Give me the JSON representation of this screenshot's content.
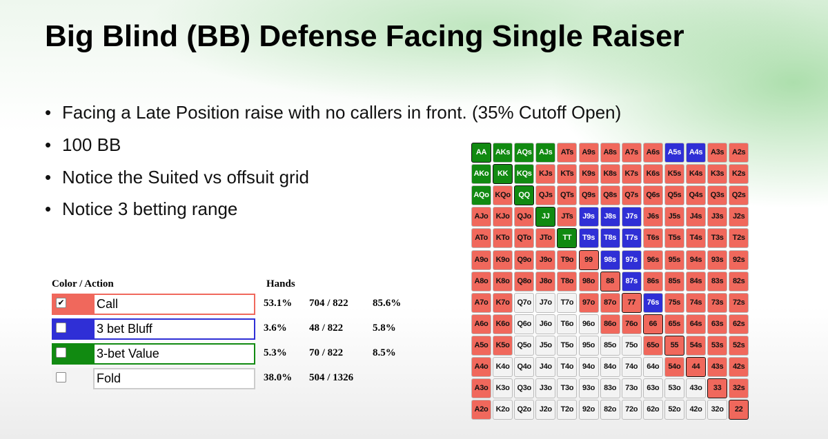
{
  "title": "Big Blind (BB) Defense Facing Single Raiser",
  "bullets": [
    "Facing a Late Position raise with no callers in front. (35% Cutoff Open)",
    "100 BB",
    "Notice the Suited vs offsuit grid",
    "Notice 3 betting range"
  ],
  "legend": {
    "header_action": "Color / Action",
    "header_hands": "Hands",
    "rows": [
      {
        "label": "Call",
        "color": "#f0685c",
        "checked": true,
        "percent": "53.1%",
        "hands": "704 / 822",
        "share": "85.6%"
      },
      {
        "label": "3 bet Bluff",
        "color": "#2f2fd6",
        "checked": false,
        "percent": "3.6%",
        "hands": "48 / 822",
        "share": "5.8%"
      },
      {
        "label": "3-bet Value",
        "color": "#118a11",
        "checked": false,
        "percent": "5.3%",
        "hands": "70 / 822",
        "share": "8.5%"
      },
      {
        "label": "Fold",
        "color": "#f3f3f3",
        "checked": false,
        "percent": "38.0%",
        "hands": "504 / 1326"
      }
    ]
  },
  "grid": {
    "labels": [
      [
        "AA",
        "AKs",
        "AQs",
        "AJs",
        "ATs",
        "A9s",
        "A8s",
        "A7s",
        "A6s",
        "A5s",
        "A4s",
        "A3s",
        "A2s"
      ],
      [
        "AKo",
        "KK",
        "KQs",
        "KJs",
        "KTs",
        "K9s",
        "K8s",
        "K7s",
        "K6s",
        "K5s",
        "K4s",
        "K3s",
        "K2s"
      ],
      [
        "AQo",
        "KQo",
        "QQ",
        "QJs",
        "QTs",
        "Q9s",
        "Q8s",
        "Q7s",
        "Q6s",
        "Q5s",
        "Q4s",
        "Q3s",
        "Q2s"
      ],
      [
        "AJo",
        "KJo",
        "QJo",
        "JJ",
        "JTs",
        "J9s",
        "J8s",
        "J7s",
        "J6s",
        "J5s",
        "J4s",
        "J3s",
        "J2s"
      ],
      [
        "ATo",
        "KTo",
        "QTo",
        "JTo",
        "TT",
        "T9s",
        "T8s",
        "T7s",
        "T6s",
        "T5s",
        "T4s",
        "T3s",
        "T2s"
      ],
      [
        "A9o",
        "K9o",
        "Q9o",
        "J9o",
        "T9o",
        "99",
        "98s",
        "97s",
        "96s",
        "95s",
        "94s",
        "93s",
        "92s"
      ],
      [
        "A8o",
        "K8o",
        "Q8o",
        "J8o",
        "T8o",
        "98o",
        "88",
        "87s",
        "86s",
        "85s",
        "84s",
        "83s",
        "82s"
      ],
      [
        "A7o",
        "K7o",
        "Q7o",
        "J7o",
        "T7o",
        "97o",
        "87o",
        "77",
        "76s",
        "75s",
        "74s",
        "73s",
        "72s"
      ],
      [
        "A6o",
        "K6o",
        "Q6o",
        "J6o",
        "T6o",
        "96o",
        "86o",
        "76o",
        "66",
        "65s",
        "64s",
        "63s",
        "62s"
      ],
      [
        "A5o",
        "K5o",
        "Q5o",
        "J5o",
        "T5o",
        "95o",
        "85o",
        "75o",
        "65o",
        "55",
        "54s",
        "53s",
        "52s"
      ],
      [
        "A4o",
        "K4o",
        "Q4o",
        "J4o",
        "T4o",
        "94o",
        "84o",
        "74o",
        "64o",
        "54o",
        "44",
        "43s",
        "42s"
      ],
      [
        "A3o",
        "K3o",
        "Q3o",
        "J3o",
        "T3o",
        "93o",
        "83o",
        "73o",
        "63o",
        "53o",
        "43o",
        "33",
        "32s"
      ],
      [
        "A2o",
        "K2o",
        "Q2o",
        "J2o",
        "T2o",
        "92o",
        "82o",
        "72o",
        "62o",
        "52o",
        "42o",
        "32o",
        "22"
      ]
    ],
    "actions": [
      [
        "3-bet Value",
        "3-bet Value",
        "3-bet Value",
        "3-bet Value",
        "Call",
        "Call",
        "Call",
        "Call",
        "Call",
        "3 bet Bluff",
        "3 bet Bluff",
        "Call",
        "Call"
      ],
      [
        "3-bet Value",
        "3-bet Value",
        "3-bet Value",
        "Call",
        "Call",
        "Call",
        "Call",
        "Call",
        "Call",
        "Call",
        "Call",
        "Call",
        "Call"
      ],
      [
        "3-bet Value",
        "Call",
        "3-bet Value",
        "Call",
        "Call",
        "Call",
        "Call",
        "Call",
        "Call",
        "Call",
        "Call",
        "Call",
        "Call"
      ],
      [
        "Call",
        "Call",
        "Call",
        "3-bet Value",
        "Call",
        "3 bet Bluff",
        "3 bet Bluff",
        "3 bet Bluff",
        "Call",
        "Call",
        "Call",
        "Call",
        "Call"
      ],
      [
        "Call",
        "Call",
        "Call",
        "Call",
        "3-bet Value",
        "3 bet Bluff",
        "3 bet Bluff",
        "3 bet Bluff",
        "Call",
        "Call",
        "Call",
        "Call",
        "Call"
      ],
      [
        "Call",
        "Call",
        "Call",
        "Call",
        "Call",
        "Call",
        "3 bet Bluff",
        "3 bet Bluff",
        "Call",
        "Call",
        "Call",
        "Call",
        "Call"
      ],
      [
        "Call",
        "Call",
        "Call",
        "Call",
        "Call",
        "Call",
        "Call",
        "3 bet Bluff",
        "Call",
        "Call",
        "Call",
        "Call",
        "Call"
      ],
      [
        "Call",
        "Call",
        "Fold",
        "Fold",
        "Fold",
        "Call",
        "Call",
        "Call",
        "3 bet Bluff",
        "Call",
        "Call",
        "Call",
        "Call"
      ],
      [
        "Call",
        "Call",
        "Fold",
        "Fold",
        "Fold",
        "Fold",
        "Call",
        "Call",
        "Call",
        "Call",
        "Call",
        "Call",
        "Call"
      ],
      [
        "Call",
        "Call",
        "Fold",
        "Fold",
        "Fold",
        "Fold",
        "Fold",
        "Fold",
        "Call",
        "Call",
        "Call",
        "Call",
        "Call"
      ],
      [
        "Call",
        "Fold",
        "Fold",
        "Fold",
        "Fold",
        "Fold",
        "Fold",
        "Fold",
        "Fold",
        "Call",
        "Call",
        "Call",
        "Call"
      ],
      [
        "Call",
        "Fold",
        "Fold",
        "Fold",
        "Fold",
        "Fold",
        "Fold",
        "Fold",
        "Fold",
        "Fold",
        "Fold",
        "Call",
        "Call"
      ],
      [
        "Call",
        "Fold",
        "Fold",
        "Fold",
        "Fold",
        "Fold",
        "Fold",
        "Fold",
        "Fold",
        "Fold",
        "Fold",
        "Fold",
        "Call"
      ]
    ]
  }
}
